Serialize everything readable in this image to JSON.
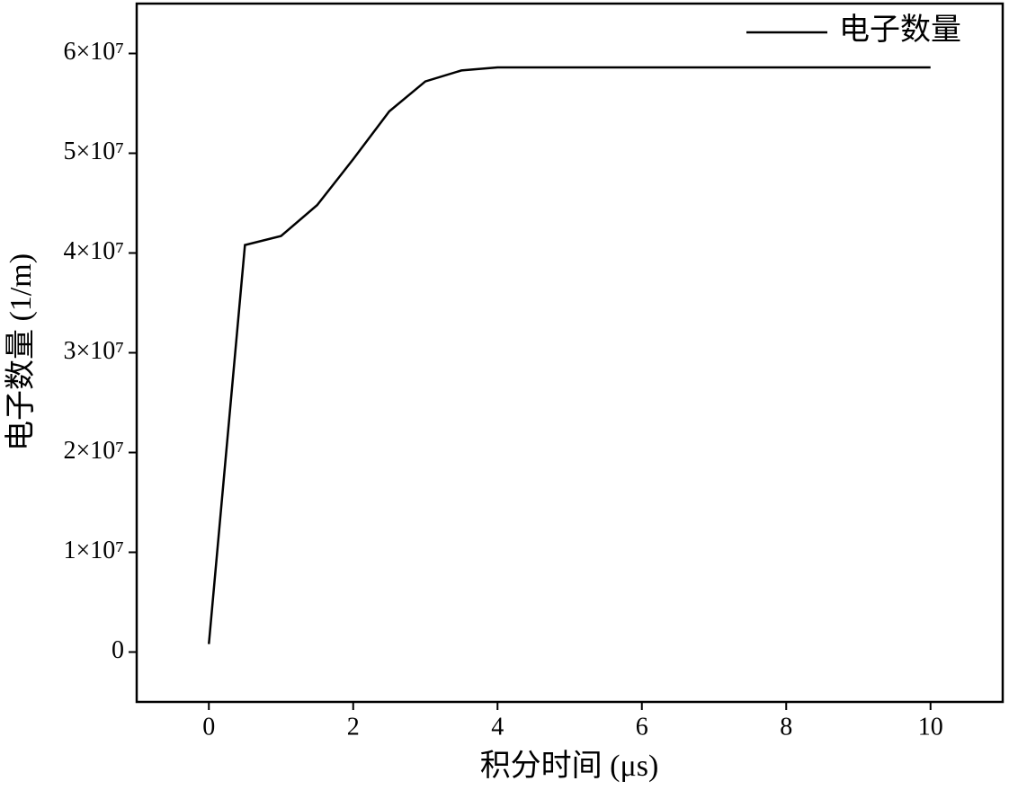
{
  "chart_data": {
    "type": "line",
    "x_label": "积分时间 (μs)",
    "y_label": "电子数量 (1/m)",
    "x": [
      0,
      0.5,
      1,
      1.5,
      2,
      2.5,
      3,
      3.5,
      4,
      5,
      6,
      7,
      8,
      9,
      10
    ],
    "series": [
      {
        "name": "电子数量",
        "color": "#000000",
        "values": [
          800000,
          40800000,
          41700000,
          44800000,
          49400000,
          54200000,
          57200000,
          58300000,
          58600000,
          58600000,
          58600000,
          58600000,
          58600000,
          58600000,
          58600000
        ]
      }
    ],
    "xlim": [
      -1,
      11
    ],
    "xticks": [
      0,
      2,
      4,
      6,
      8,
      10
    ],
    "ylim": [
      -5000000,
      65000000
    ],
    "yticks": [
      0,
      {
        "value": 10000000,
        "label": "1×10⁷"
      },
      {
        "value": 20000000,
        "label": "2×10⁷"
      },
      {
        "value": 30000000,
        "label": "3×10⁷"
      },
      {
        "value": 40000000,
        "label": "4×10⁷"
      },
      {
        "value": 50000000,
        "label": "5×10⁷"
      },
      {
        "value": 60000000,
        "label": "6×10⁷"
      }
    ],
    "legend": "upper right"
  }
}
